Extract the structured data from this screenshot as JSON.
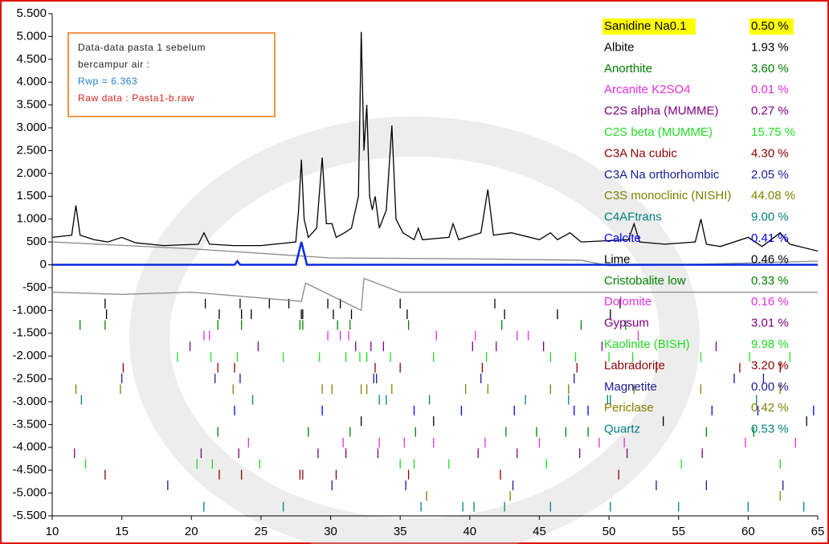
{
  "chart_data": {
    "type": "line",
    "xlim": [
      10,
      65
    ],
    "ylim": [
      -5500,
      5500
    ],
    "xticks": [
      10,
      15,
      20,
      25,
      30,
      35,
      40,
      45,
      50,
      55,
      60,
      65
    ],
    "yticks": [
      {
        "value": 5500,
        "label": "5.500"
      },
      {
        "value": 5000,
        "label": "5.000"
      },
      {
        "value": 4500,
        "label": "4.500"
      },
      {
        "value": 4000,
        "label": "4.000"
      },
      {
        "value": 3500,
        "label": "3.500"
      },
      {
        "value": 3000,
        "label": "3.000"
      },
      {
        "value": 2500,
        "label": "2.500"
      },
      {
        "value": 2000,
        "label": "2.000"
      },
      {
        "value": 1500,
        "label": "1.500"
      },
      {
        "value": 1000,
        "label": "1.000"
      },
      500,
      0,
      -500,
      {
        "value": -1000,
        "label": "-1.000"
      },
      {
        "value": -1500,
        "label": "-1.500"
      },
      {
        "value": -2000,
        "label": "-2.000"
      },
      {
        "value": -2500,
        "label": "-2.500"
      },
      {
        "value": -3000,
        "label": "-3.000"
      },
      {
        "value": -3500,
        "label": "-3.500"
      },
      {
        "value": -4000,
        "label": "-4.000"
      },
      {
        "value": -4500,
        "label": "-4.500"
      },
      {
        "value": -5000,
        "label": "-5.000"
      },
      {
        "value": -5500,
        "label": "-5.500"
      }
    ],
    "annotation": {
      "border_color": "#f0964a",
      "lines": [
        {
          "text": "Data-data pasta 1 sebelum",
          "color": "#222222"
        },
        {
          "text": "bercampur air :",
          "color": "#222222"
        },
        {
          "text": "Rwp =  6.363",
          "color": "#1f7fd0"
        },
        {
          "text": "Raw data : Pasta1-b.raw",
          "color": "#e02020"
        }
      ]
    },
    "series": [
      {
        "color": "#888888",
        "x": [
          10,
          20,
          30,
          40,
          48,
          50,
          55,
          65
        ],
        "values": [
          500,
          350,
          150,
          130,
          100,
          -20,
          0,
          80
        ]
      },
      {
        "color": "#888888",
        "x": [
          10,
          15,
          20,
          27.9,
          28.2,
          32.2,
          32.4,
          35,
          50,
          65
        ],
        "values": [
          -600,
          -650,
          -600,
          -800,
          -400,
          -1000,
          -300,
          -600,
          -600,
          -600
        ]
      },
      {
        "color": "#0a2be0",
        "x": [
          10,
          23.1,
          23.3,
          23.5,
          27.5,
          27.9,
          28.3,
          65
        ],
        "values": [
          0,
          0,
          80,
          0,
          0,
          500,
          0,
          0
        ]
      },
      {
        "color": "#000000",
        "x": [
          10,
          11.4,
          11.7,
          12.0,
          13,
          14,
          15.0,
          16,
          18,
          20.5,
          20.9,
          21.3,
          23,
          25,
          27.5,
          27.7,
          27.9,
          28.1,
          28.4,
          29.0,
          29.4,
          29.7,
          30.1,
          30.4,
          31.0,
          31.5,
          32.0,
          32.2,
          32.4,
          32.6,
          32.8,
          33.0,
          33.2,
          33.5,
          34.0,
          34.4,
          34.7,
          35.2,
          36.0,
          36.3,
          36.6,
          38.5,
          38.8,
          39.2,
          40.8,
          41.3,
          41.7,
          43.0,
          45.0,
          45.8,
          46.3,
          47.2,
          48,
          51.4,
          51.8,
          52.2,
          54,
          56.2,
          56.6,
          57.0,
          58,
          60.0,
          61,
          62.3,
          63,
          65
        ],
        "values": [
          600,
          650,
          1300,
          650,
          550,
          500,
          600,
          480,
          420,
          450,
          700,
          450,
          420,
          420,
          500,
          1200,
          2300,
          1000,
          600,
          800,
          2350,
          900,
          900,
          600,
          700,
          800,
          1500,
          5100,
          2500,
          3500,
          1500,
          1200,
          1500,
          800,
          1200,
          3050,
          1000,
          700,
          550,
          800,
          550,
          600,
          900,
          550,
          700,
          1650,
          650,
          700,
          550,
          700,
          550,
          700,
          500,
          550,
          900,
          500,
          450,
          500,
          1000,
          450,
          400,
          600,
          400,
          700,
          450,
          300
        ]
      }
    ],
    "phases": [
      {
        "name": "Sanidine Na0.1",
        "color": "#000000",
        "highlight": "#ffff00",
        "fraction": 0.5,
        "fraction_label": "0.50 %",
        "reflections": [
          13.8,
          21.0,
          23.5,
          25.6,
          27.0,
          29.8,
          30.7,
          35.0,
          41.8,
          50.8
        ]
      },
      {
        "name": "Albite",
        "color": "#000000",
        "fraction": 1.93,
        "fraction_label": "1.93 %",
        "reflections": [
          13.9,
          22.0,
          23.6,
          24.3,
          27.9,
          28.0,
          30.2,
          31.5,
          35.5,
          42.5,
          46.3,
          50.1
        ]
      },
      {
        "name": "Anorthite",
        "color": "#008000",
        "fraction": 3.6,
        "fraction_label": "3.60 %",
        "reflections": [
          12.0,
          13.8,
          21.9,
          23.6,
          27.8,
          28.0,
          30.5,
          31.4,
          35.6,
          42.3,
          48.0,
          51.2
        ]
      },
      {
        "name": "Arcanite K2SO4",
        "color": "#e030e0",
        "fraction": 0.01,
        "fraction_label": "0.01 %",
        "reflections": [
          20.9,
          21.3,
          29.8,
          30.7,
          31.3,
          37.6,
          40.4,
          43.4,
          44.2,
          52.1
        ]
      },
      {
        "name": "C2S alpha (MUMME)",
        "color": "#800080",
        "fraction": 0.27,
        "fraction_label": "0.27 %",
        "reflections": [
          19.9,
          24.8,
          31.8,
          32.9,
          33.8,
          40.2,
          41.9,
          45.3,
          49.5,
          57.7
        ]
      },
      {
        "name": "C2S beta (MUMME)",
        "color": "#22dd22",
        "fraction": 15.75,
        "fraction_label": "15.75 %",
        "reflections": [
          19.0,
          21.4,
          23.3,
          26.6,
          29.2,
          31.1,
          32.1,
          32.6,
          34.3,
          37.4,
          41.2,
          45.8,
          47.6,
          50.0,
          51.7,
          56.6,
          60.1,
          63.0
        ]
      },
      {
        "name": "C3A Na cubic",
        "color": "#8b0000",
        "fraction": 4.3,
        "fraction_label": "4.30 %",
        "reflections": [
          15.1,
          21.9,
          23.1,
          33.2,
          35.0,
          40.9,
          47.7,
          53.4,
          59.4,
          62.3
        ]
      },
      {
        "name": "C3A Na orthorhombic",
        "color": "#1a1a9a",
        "fraction": 2.05,
        "fraction_label": "2.05 %",
        "reflections": [
          15.0,
          21.7,
          23.5,
          33.1,
          33.3,
          40.8,
          47.5,
          59.0,
          61.1
        ]
      },
      {
        "name": "C3S monoclinic (NISHI)",
        "color": "#808000",
        "fraction": 44.08,
        "fraction_label": "44.08 %",
        "reflections": [
          11.7,
          14.9,
          23.0,
          29.4,
          30.1,
          32.2,
          32.6,
          34.4,
          39.7,
          41.3,
          45.8,
          47.1,
          51.8,
          56.6,
          62.3
        ]
      },
      {
        "name": "C4AFtrans",
        "color": "#008080",
        "fraction": 9,
        "fraction_label": "9.00 %",
        "reflections": [
          12.1,
          24.4,
          33.5,
          34.0,
          37.1,
          44.0,
          47.1,
          49.9,
          50.1,
          60.6
        ]
      },
      {
        "name": "Calcite",
        "color": "#0000ff",
        "fraction": 0.41,
        "fraction_label": "0.41 %",
        "reflections": [
          23.1,
          29.4,
          36.0,
          39.4,
          43.2,
          47.5,
          48.5,
          57.4,
          60.7,
          64.7
        ]
      },
      {
        "name": "Lime",
        "color": "#000000",
        "fraction": 0.46,
        "fraction_label": "0.46 %",
        "reflections": [
          32.2,
          37.4,
          53.9,
          64.2
        ]
      },
      {
        "name": "Cristobalite low",
        "color": "#008000",
        "fraction": 0.33,
        "fraction_label": "0.33 %",
        "reflections": [
          21.9,
          28.4,
          31.4,
          36.1,
          42.6,
          44.8,
          46.9,
          48.5,
          57.0,
          60.4
        ]
      },
      {
        "name": "Dolomite",
        "color": "#e030e0",
        "fraction": 0.16,
        "fraction_label": "0.16 %",
        "reflections": [
          24.1,
          30.9,
          33.5,
          35.3,
          37.4,
          41.1,
          45.0,
          49.3,
          51.1,
          59.8,
          63.4
        ]
      },
      {
        "name": "Gypsum",
        "color": "#800080",
        "fraction": 3.01,
        "fraction_label": "3.01 %",
        "reflections": [
          11.6,
          20.7,
          23.4,
          29.1,
          31.1,
          33.4,
          40.6,
          43.4,
          47.9,
          51.3,
          56.7
        ]
      },
      {
        "name": "Kaolinite (BISH)",
        "color": "#22dd22",
        "fraction": 9.98,
        "fraction_label": "9.98 %",
        "reflections": [
          12.4,
          20.4,
          21.5,
          24.9,
          35.0,
          36.0,
          38.5,
          45.5,
          55.2,
          62.3
        ]
      },
      {
        "name": "Labradorite",
        "color": "#8b0000",
        "fraction": 3.2,
        "fraction_label": "3.20 %",
        "reflections": [
          13.8,
          22.0,
          23.6,
          27.8,
          28.0,
          30.4,
          35.6,
          42.2,
          50.7
        ]
      },
      {
        "name": "Magnetite",
        "color": "#1a1a9a",
        "fraction": 0,
        "fraction_label": "0.00 %",
        "reflections": [
          18.3,
          30.1,
          35.4,
          43.1,
          53.4,
          57.0,
          62.5
        ]
      },
      {
        "name": "Periclase",
        "color": "#808000",
        "fraction": 0.42,
        "fraction_label": "0.42 %",
        "reflections": [
          36.9,
          42.9,
          62.3
        ]
      },
      {
        "name": "Quartz",
        "color": "#008080",
        "fraction": 0.53,
        "fraction_label": "0.53 %",
        "reflections": [
          20.9,
          26.6,
          36.5,
          39.5,
          40.3,
          42.5,
          45.8,
          50.1,
          55.0,
          60.0,
          64.0
        ]
      }
    ]
  }
}
